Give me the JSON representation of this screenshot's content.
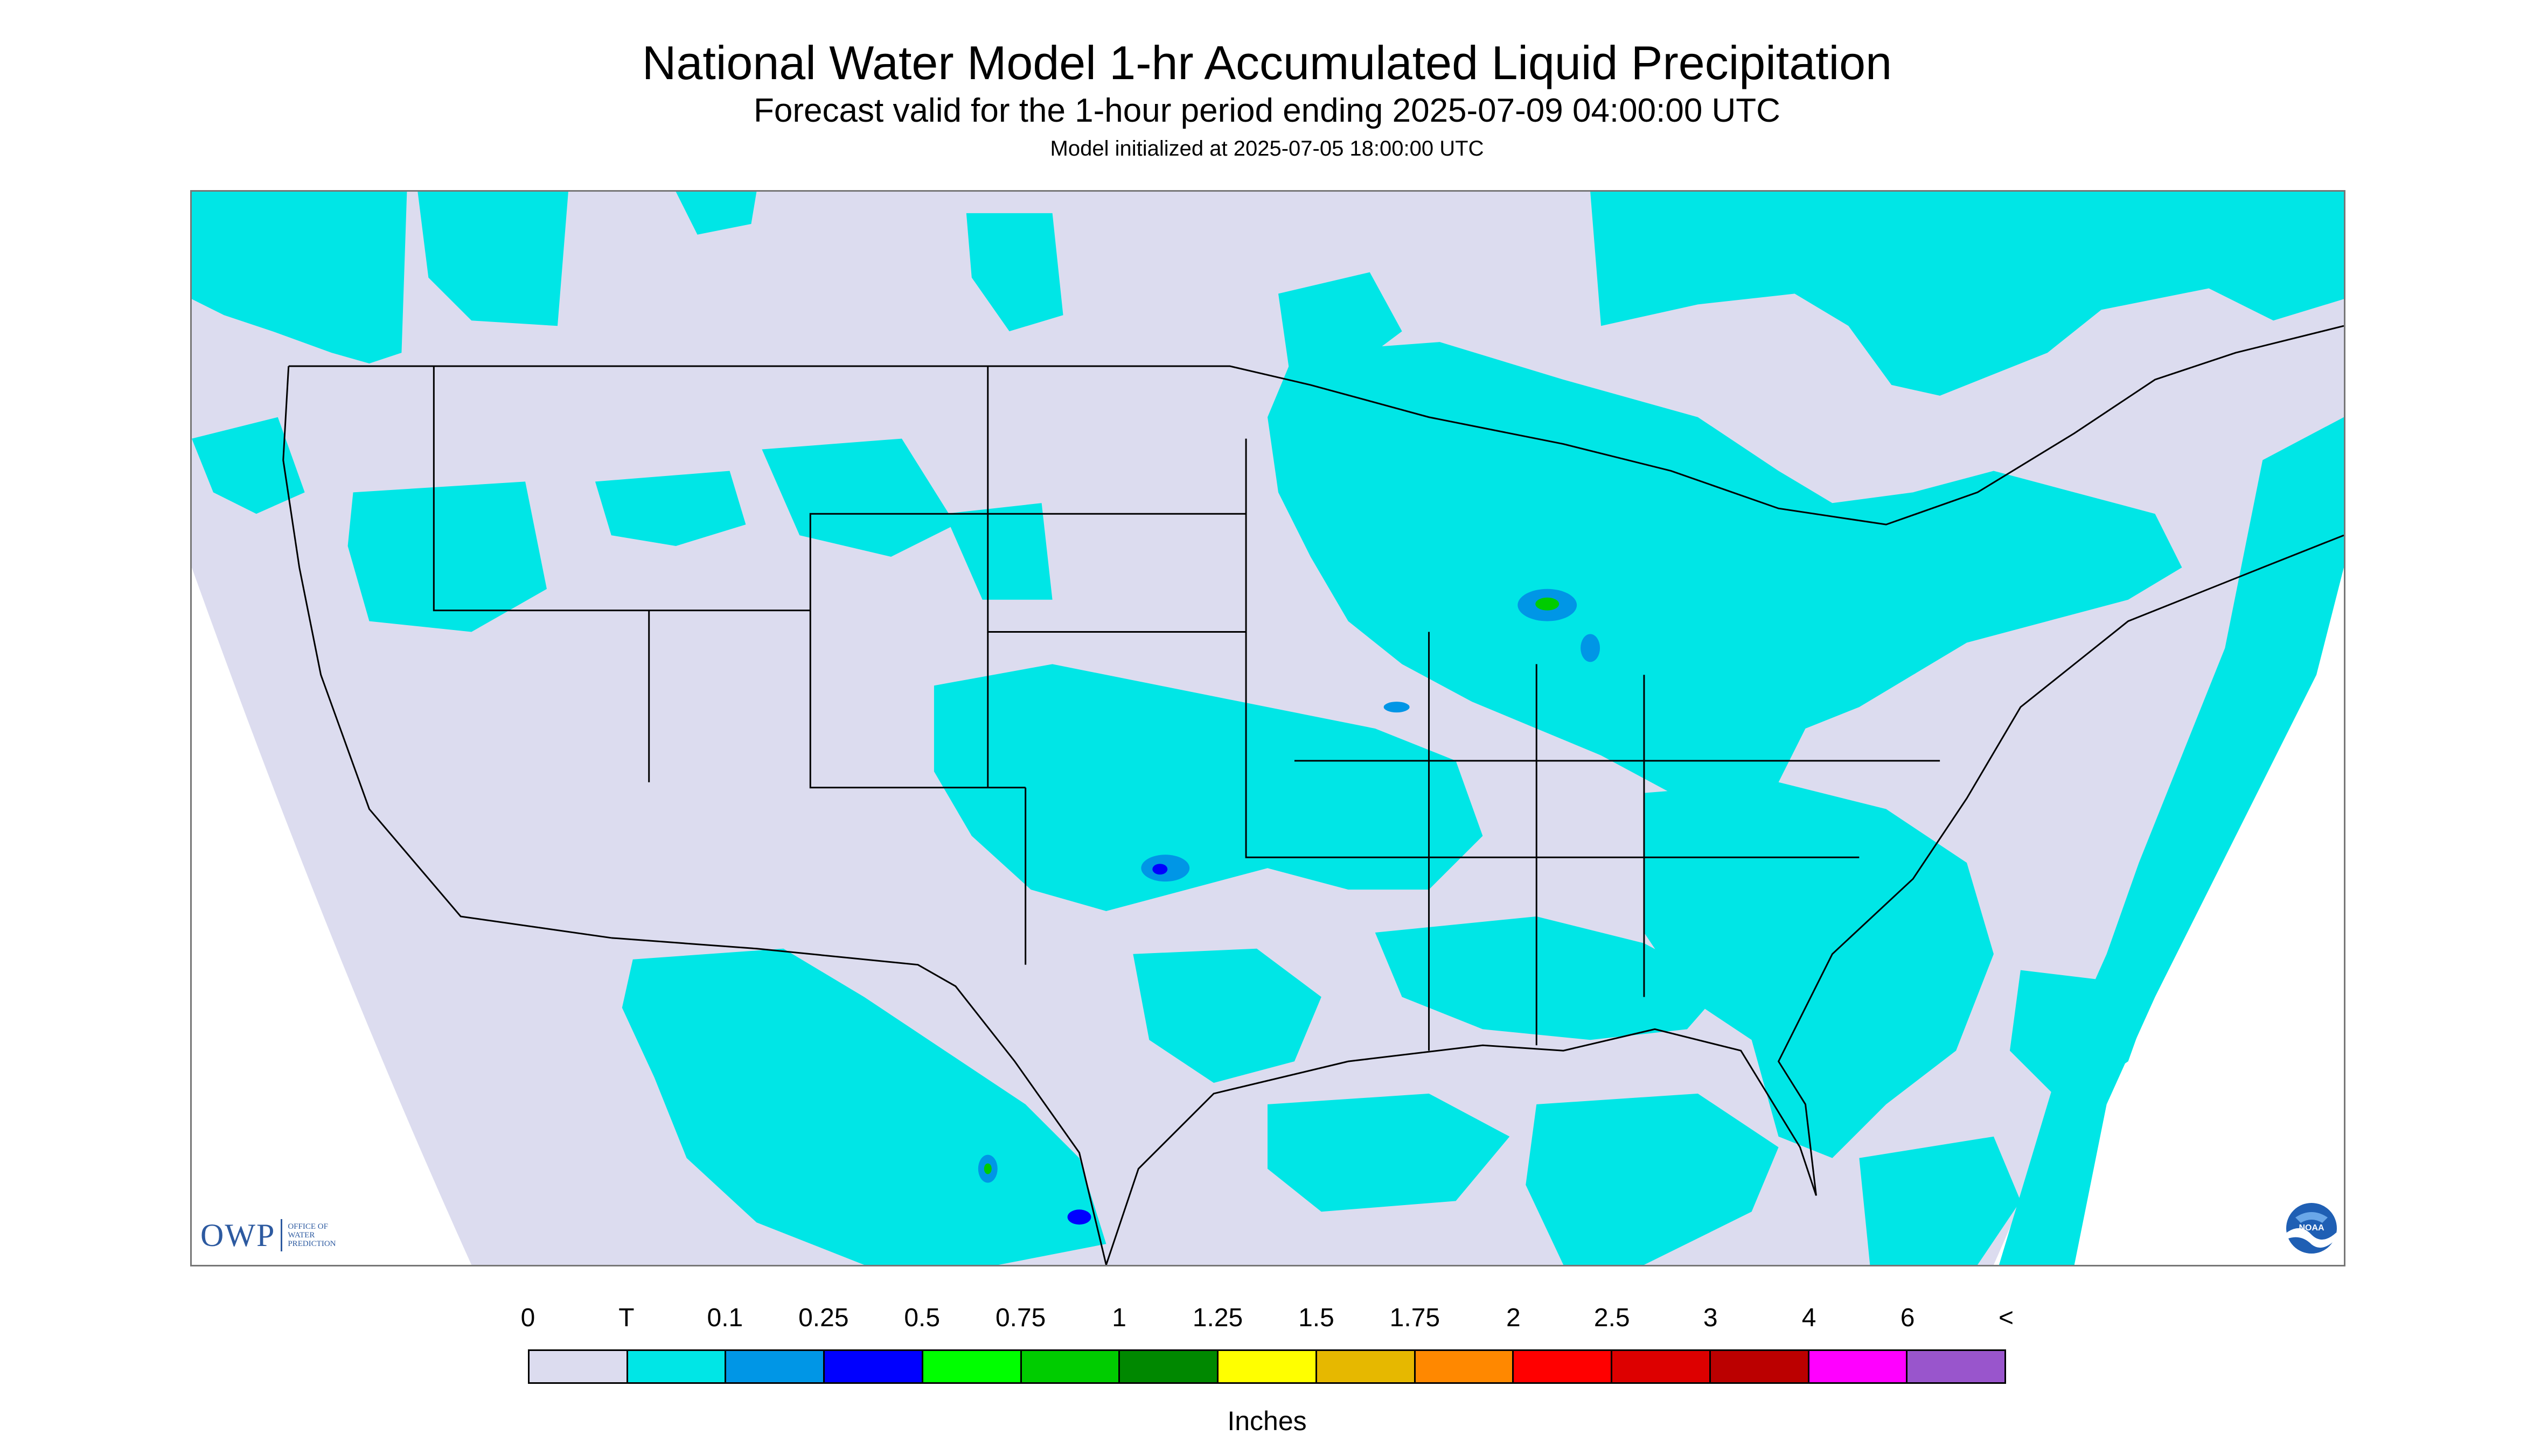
{
  "header": {
    "title": "National Water Model 1-hr Accumulated Liquid Precipitation",
    "subtitle": "Forecast valid for the 1-hour period ending 2025-07-09 04:00:00 UTC",
    "init": "Model initialized at 2025-07-05 18:00:00 UTC"
  },
  "map": {
    "background_color": "#dcdcef",
    "outside_color": "#ffffff",
    "boundary_color": "#000000",
    "precip_colors": {
      "trace": "#00e6e6",
      "light": "#0096e6",
      "moderate": "#0000ff",
      "heavy": "#00cc00"
    },
    "owp_logo": {
      "abbrev": "OWP",
      "lines": [
        "OFFICE OF",
        "WATER",
        "PREDICTION"
      ]
    },
    "noaa_logo": {
      "label": "NOAA",
      "icon": "noaa-logo"
    }
  },
  "legend": {
    "labels": [
      "0",
      "T",
      "0.1",
      "0.25",
      "0.5",
      "0.75",
      "1",
      "1.25",
      "1.5",
      "1.75",
      "2",
      "2.5",
      "3",
      "4",
      "6",
      "<"
    ],
    "colors": [
      "#dcdcef",
      "#00e6e6",
      "#0096e6",
      "#0000ff",
      "#00ff00",
      "#00cc00",
      "#008800",
      "#ffff00",
      "#e6b800",
      "#ff8800",
      "#ff0000",
      "#dd0000",
      "#bb0000",
      "#ff00ff",
      "#9955cc"
    ],
    "units": "Inches"
  }
}
